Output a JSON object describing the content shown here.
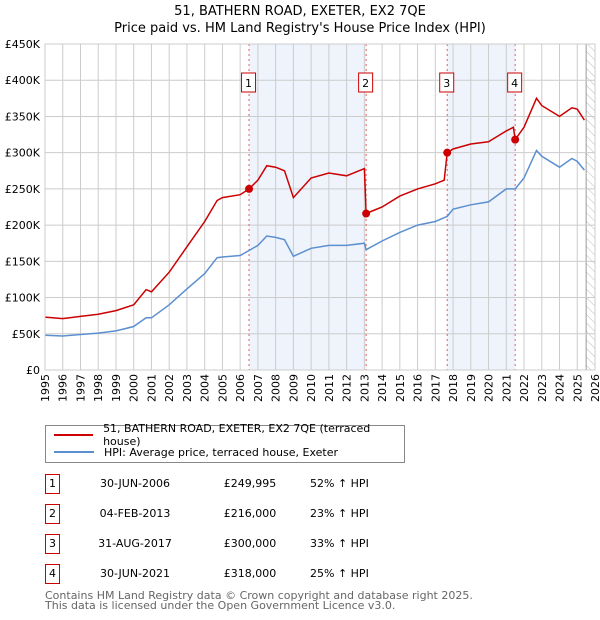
{
  "chart_data": {
    "type": "line",
    "title": "51, BATHERN ROAD, EXETER, EX2 7QE",
    "subtitle": "Price paid vs. HM Land Registry's House Price Index (HPI)",
    "xlim": [
      1995,
      2026
    ],
    "ylim": [
      0,
      450000
    ],
    "x_ticks": [
      "1995",
      "1996",
      "1997",
      "1998",
      "1999",
      "2000",
      "2001",
      "2002",
      "2003",
      "2004",
      "2005",
      "2006",
      "2007",
      "2008",
      "2009",
      "2010",
      "2011",
      "2012",
      "2013",
      "2014",
      "2015",
      "2016",
      "2017",
      "2018",
      "2019",
      "2020",
      "2021",
      "2022",
      "2023",
      "2024",
      "2025",
      "2026"
    ],
    "y_ticks": [
      {
        "v": 0,
        "label": "£0"
      },
      {
        "v": 50000,
        "label": "£50K"
      },
      {
        "v": 100000,
        "label": "£100K"
      },
      {
        "v": 150000,
        "label": "£150K"
      },
      {
        "v": 200000,
        "label": "£200K"
      },
      {
        "v": 250000,
        "label": "£250K"
      },
      {
        "v": 300000,
        "label": "£300K"
      },
      {
        "v": 350000,
        "label": "£350K"
      },
      {
        "v": 400000,
        "label": "£400K"
      },
      {
        "v": 450000,
        "label": "£450K"
      }
    ],
    "grid": true,
    "forecast_hatch_from": 2025.5,
    "shaded_ranges": [
      [
        2006.5,
        2013.1
      ],
      [
        2017.67,
        2021.5
      ]
    ],
    "series": [
      {
        "name": "51, BATHERN ROAD, EXETER, EX2 7QE (terraced house)",
        "color": "#cc0000",
        "x": [
          1995,
          1996,
          1997,
          1998,
          1999,
          2000,
          2000.7,
          2001,
          2002,
          2003,
          2004,
          2004.7,
          2005,
          2006,
          2006.5,
          2007,
          2007.5,
          2008,
          2008.5,
          2009,
          2010,
          2011,
          2012,
          2013,
          2013.1,
          2014,
          2015,
          2016,
          2017,
          2017.5,
          2017.67,
          2018,
          2019,
          2020,
          2021,
          2021.4,
          2021.5,
          2022,
          2022.7,
          2023,
          2024,
          2024.7,
          2025,
          2025.4
        ],
        "y": [
          73000,
          71000,
          74000,
          77000,
          82000,
          90000,
          111000,
          108000,
          135000,
          170000,
          205000,
          234000,
          238000,
          242000,
          250000,
          262000,
          282000,
          280000,
          275000,
          238000,
          265000,
          272000,
          268000,
          278000,
          216000,
          225000,
          240000,
          250000,
          257000,
          262000,
          300000,
          305000,
          312000,
          315000,
          330000,
          335000,
          318000,
          335000,
          375000,
          365000,
          350000,
          362000,
          360000,
          345000
        ]
      },
      {
        "name": "HPI: Average price, terraced house, Exeter",
        "color": "#5b8fd0",
        "x": [
          1995,
          1996,
          1997,
          1998,
          1999,
          2000,
          2000.7,
          2001,
          2002,
          2003,
          2004,
          2004.7,
          2005,
          2006,
          2006.5,
          2007,
          2007.5,
          2008,
          2008.5,
          2009,
          2010,
          2011,
          2012,
          2013,
          2013.1,
          2014,
          2015,
          2016,
          2017,
          2017.67,
          2018,
          2019,
          2020,
          2021,
          2021.5,
          2022,
          2022.7,
          2023,
          2024,
          2024.7,
          2025,
          2025.4
        ],
        "y": [
          48000,
          47000,
          49000,
          51000,
          54000,
          60000,
          72000,
          72000,
          90000,
          112000,
          133000,
          155000,
          156000,
          158000,
          165000,
          172000,
          185000,
          183000,
          180000,
          157000,
          168000,
          172000,
          172000,
          175000,
          166000,
          178000,
          190000,
          200000,
          205000,
          212000,
          222000,
          228000,
          232000,
          250000,
          250000,
          265000,
          303000,
          295000,
          280000,
          292000,
          288000,
          276000
        ]
      }
    ],
    "sales": [
      {
        "n": "1",
        "x": 2006.5,
        "y": 249995
      },
      {
        "n": "2",
        "x": 2013.1,
        "y": 216000
      },
      {
        "n": "3",
        "x": 2017.67,
        "y": 300000
      },
      {
        "n": "4",
        "x": 2021.5,
        "y": 318000
      }
    ]
  },
  "legend": {
    "property": "51, BATHERN ROAD, EXETER, EX2 7QE (terraced house)",
    "hpi": "HPI: Average price, terraced house, Exeter"
  },
  "transactions": [
    {
      "n": "1",
      "date": "30-JUN-2006",
      "price": "£249,995",
      "hpi": "52% ↑ HPI"
    },
    {
      "n": "2",
      "date": "04-FEB-2013",
      "price": "£216,000",
      "hpi": "23% ↑ HPI"
    },
    {
      "n": "3",
      "date": "31-AUG-2017",
      "price": "£300,000",
      "hpi": "33% ↑ HPI"
    },
    {
      "n": "4",
      "date": "30-JUN-2021",
      "price": "£318,000",
      "hpi": "25% ↑ HPI"
    }
  ],
  "footer": {
    "line1": "Contains HM Land Registry data © Crown copyright and database right 2025.",
    "line2": "This data is licensed under the Open Government Licence v3.0."
  },
  "colors": {
    "property": "#cc0000",
    "hpi": "#5b8fd0",
    "shade": "#eef3fc"
  }
}
